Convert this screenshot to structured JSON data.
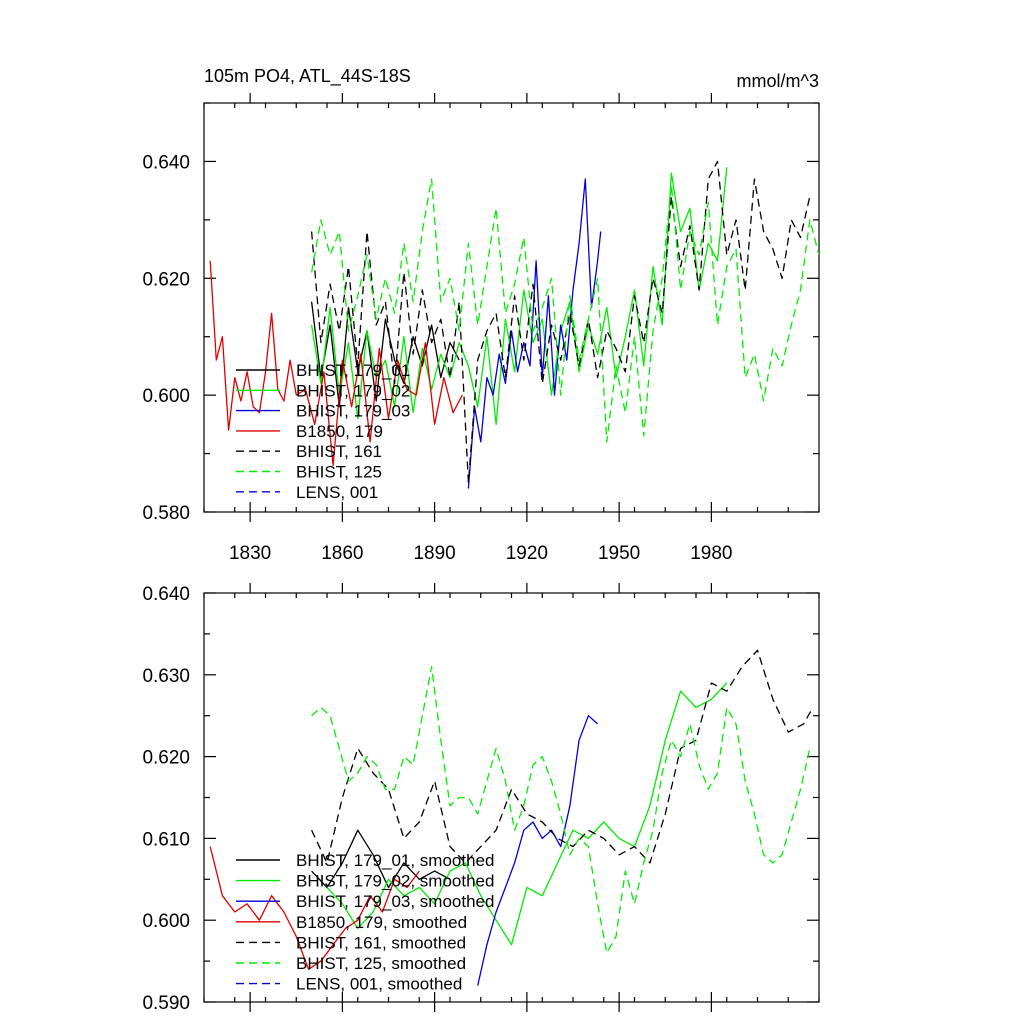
{
  "colors": {
    "black": "#000000",
    "green": "#00ee00",
    "blue": "#0000dd",
    "red": "#e00000"
  },
  "chart_data": [
    {
      "type": "line",
      "title": "105m PO4, ATL_44S-18S",
      "units": "mmol/m^3",
      "xlim": [
        1815,
        2015
      ],
      "ylim": [
        0.58,
        0.65
      ],
      "xticks": [
        1830,
        1860,
        1890,
        1920,
        1950,
        1980
      ],
      "xtick_labels": [
        "1830",
        "1860",
        "1890",
        "1920",
        "1950",
        "1980"
      ],
      "yticks": [
        0.58,
        0.6,
        0.62,
        0.64
      ],
      "ytick_labels": [
        "0.580",
        "0.600",
        "0.620",
        "0.640"
      ],
      "legend_position": "bottom-left",
      "series": [
        {
          "name": "BHIST, 179_01",
          "color": "#000000",
          "dash": "solid",
          "x": [
            1850,
            1853,
            1856,
            1859,
            1862,
            1865,
            1868,
            1871,
            1874,
            1877,
            1880,
            1883,
            1886,
            1889,
            1892,
            1895,
            1898
          ],
          "values": [
            0.616,
            0.603,
            0.612,
            0.598,
            0.615,
            0.604,
            0.611,
            0.599,
            0.613,
            0.606,
            0.602,
            0.61,
            0.605,
            0.612,
            0.603,
            0.609,
            0.606
          ]
        },
        {
          "name": "BHIST, 179_02",
          "color": "#00ee00",
          "dash": "solid",
          "x": [
            1850,
            1853,
            1856,
            1859,
            1862,
            1865,
            1868,
            1871,
            1874,
            1877,
            1880,
            1883,
            1886,
            1889,
            1892,
            1895,
            1898,
            1901,
            1904,
            1907,
            1910,
            1913,
            1916,
            1919,
            1922,
            1925,
            1928,
            1931,
            1934,
            1937,
            1940,
            1943,
            1946,
            1949,
            1952,
            1955,
            1958,
            1961,
            1964,
            1967,
            1970,
            1973,
            1976,
            1979,
            1982,
            1985
          ],
          "values": [
            0.612,
            0.602,
            0.615,
            0.6,
            0.609,
            0.596,
            0.611,
            0.603,
            0.606,
            0.598,
            0.61,
            0.597,
            0.608,
            0.601,
            0.607,
            0.603,
            0.609,
            0.605,
            0.598,
            0.61,
            0.595,
            0.613,
            0.604,
            0.618,
            0.609,
            0.613,
            0.6,
            0.611,
            0.616,
            0.604,
            0.612,
            0.607,
            0.615,
            0.603,
            0.61,
            0.618,
            0.605,
            0.622,
            0.612,
            0.638,
            0.628,
            0.632,
            0.618,
            0.626,
            0.623,
            0.639
          ]
        },
        {
          "name": "BHIST, 179_03",
          "color": "#0000dd",
          "dash": "solid",
          "x": [
            1901,
            1903,
            1905,
            1907,
            1909,
            1911,
            1913,
            1915,
            1917,
            1919,
            1921,
            1923,
            1925,
            1927,
            1929,
            1931,
            1933,
            1935,
            1937,
            1939,
            1941,
            1943,
            1944
          ],
          "values": [
            0.584,
            0.598,
            0.592,
            0.603,
            0.6,
            0.607,
            0.602,
            0.611,
            0.604,
            0.609,
            0.605,
            0.623,
            0.603,
            0.617,
            0.6,
            0.612,
            0.606,
            0.618,
            0.626,
            0.637,
            0.615,
            0.623,
            0.628
          ]
        },
        {
          "name": "B1850, 179",
          "color": "#e00000",
          "dash": "solid",
          "x": [
            1817,
            1819,
            1821,
            1823,
            1825,
            1827,
            1829,
            1831,
            1833,
            1835,
            1837,
            1839,
            1841,
            1843,
            1845,
            1848,
            1851,
            1854,
            1857,
            1860,
            1863,
            1866,
            1869,
            1872,
            1875,
            1878,
            1881,
            1884,
            1887,
            1890,
            1893,
            1896,
            1899
          ],
          "values": [
            0.623,
            0.606,
            0.61,
            0.594,
            0.603,
            0.599,
            0.604,
            0.598,
            0.597,
            0.604,
            0.614,
            0.601,
            0.599,
            0.606,
            0.6,
            0.601,
            0.595,
            0.604,
            0.588,
            0.606,
            0.598,
            0.607,
            0.592,
            0.608,
            0.596,
            0.606,
            0.601,
            0.6,
            0.609,
            0.595,
            0.603,
            0.597,
            0.6
          ]
        },
        {
          "name": "BHIST, 161",
          "color": "#000000",
          "dash": "dashed",
          "x": [
            1850,
            1853,
            1856,
            1859,
            1862,
            1865,
            1868,
            1871,
            1874,
            1877,
            1880,
            1883,
            1886,
            1889,
            1892,
            1895,
            1898,
            1901,
            1904,
            1907,
            1910,
            1913,
            1916,
            1919,
            1922,
            1925,
            1928,
            1931,
            1934,
            1937,
            1940,
            1943,
            1946,
            1949,
            1952,
            1955,
            1958,
            1961,
            1964,
            1967,
            1970,
            1973,
            1976,
            1979,
            1982,
            1985,
            1988,
            1991,
            1994,
            1997,
            2000,
            2003,
            2006,
            2009,
            2012
          ],
          "values": [
            0.628,
            0.609,
            0.619,
            0.611,
            0.622,
            0.605,
            0.628,
            0.612,
            0.616,
            0.602,
            0.621,
            0.607,
            0.618,
            0.609,
            0.613,
            0.603,
            0.616,
            0.585,
            0.606,
            0.611,
            0.614,
            0.603,
            0.617,
            0.606,
            0.619,
            0.602,
            0.612,
            0.606,
            0.614,
            0.605,
            0.613,
            0.603,
            0.611,
            0.608,
            0.604,
            0.617,
            0.609,
            0.62,
            0.614,
            0.634,
            0.622,
            0.629,
            0.618,
            0.637,
            0.64,
            0.624,
            0.63,
            0.618,
            0.637,
            0.628,
            0.625,
            0.62,
            0.63,
            0.627,
            0.634
          ]
        },
        {
          "name": "BHIST, 125",
          "color": "#00ee00",
          "dash": "dashed",
          "x": [
            1850,
            1853,
            1856,
            1859,
            1862,
            1865,
            1868,
            1871,
            1874,
            1877,
            1880,
            1883,
            1886,
            1889,
            1892,
            1895,
            1898,
            1901,
            1904,
            1907,
            1910,
            1913,
            1916,
            1919,
            1922,
            1925,
            1928,
            1931,
            1934,
            1937,
            1940,
            1943,
            1946,
            1949,
            1952,
            1955,
            1958,
            1961,
            1964,
            1967,
            1970,
            1973,
            1976,
            1979,
            1982,
            1985,
            1988,
            1991,
            1994,
            1997,
            2000,
            2003,
            2006,
            2009,
            2012,
            2015
          ],
          "values": [
            0.621,
            0.63,
            0.624,
            0.628,
            0.611,
            0.617,
            0.624,
            0.613,
            0.62,
            0.614,
            0.626,
            0.616,
            0.628,
            0.637,
            0.616,
            0.62,
            0.611,
            0.626,
            0.612,
            0.622,
            0.632,
            0.614,
            0.619,
            0.627,
            0.611,
            0.615,
            0.62,
            0.6,
            0.617,
            0.606,
            0.613,
            0.62,
            0.592,
            0.605,
            0.597,
            0.61,
            0.593,
            0.611,
            0.62,
            0.636,
            0.618,
            0.628,
            0.624,
            0.633,
            0.612,
            0.622,
            0.625,
            0.603,
            0.607,
            0.599,
            0.608,
            0.605,
            0.612,
            0.618,
            0.63,
            0.624
          ]
        },
        {
          "name": "LENS, 001",
          "color": "#0000dd",
          "dash": "dashed",
          "x": [],
          "values": []
        }
      ]
    },
    {
      "type": "line",
      "xlim": [
        1815,
        2015
      ],
      "ylim": [
        0.59,
        0.64
      ],
      "yticks": [
        0.59,
        0.6,
        0.61,
        0.62,
        0.63,
        0.64
      ],
      "ytick_labels": [
        "0.590",
        "0.600",
        "0.610",
        "0.620",
        "0.630",
        "0.640"
      ],
      "xticks": [
        1830,
        1860,
        1890,
        1920,
        1950,
        1980
      ],
      "legend_position": "bottom-left",
      "series": [
        {
          "name": "BHIST, 179_01, smoothed",
          "color": "#000000",
          "dash": "solid",
          "x": [
            1850,
            1855,
            1860,
            1865,
            1870,
            1875,
            1880,
            1885,
            1890,
            1895
          ],
          "values": [
            0.606,
            0.604,
            0.607,
            0.611,
            0.608,
            0.604,
            0.607,
            0.605,
            0.606,
            0.605
          ]
        },
        {
          "name": "BHIST, 179_02, smoothed",
          "color": "#00ee00",
          "dash": "solid",
          "x": [
            1855,
            1860,
            1865,
            1870,
            1875,
            1880,
            1885,
            1890,
            1895,
            1900,
            1905,
            1910,
            1915,
            1920,
            1925,
            1930,
            1935,
            1940,
            1945,
            1950,
            1955,
            1960,
            1965,
            1970,
            1975,
            1980,
            1985
          ],
          "values": [
            0.604,
            0.602,
            0.599,
            0.601,
            0.605,
            0.603,
            0.604,
            0.602,
            0.606,
            0.607,
            0.603,
            0.6,
            0.597,
            0.604,
            0.603,
            0.607,
            0.611,
            0.61,
            0.612,
            0.61,
            0.609,
            0.614,
            0.622,
            0.628,
            0.626,
            0.627,
            0.629
          ]
        },
        {
          "name": "BHIST, 179_03, smoothed",
          "color": "#0000dd",
          "dash": "solid",
          "x": [
            1904,
            1907,
            1910,
            1913,
            1916,
            1919,
            1922,
            1925,
            1928,
            1931,
            1934,
            1937,
            1940,
            1943
          ],
          "values": [
            0.592,
            0.597,
            0.601,
            0.604,
            0.607,
            0.611,
            0.612,
            0.61,
            0.611,
            0.609,
            0.614,
            0.622,
            0.625,
            0.624
          ]
        },
        {
          "name": "B1850, 179, smoothed",
          "color": "#e00000",
          "dash": "solid",
          "x": [
            1817,
            1821,
            1825,
            1829,
            1833,
            1837,
            1841,
            1845,
            1849,
            1853,
            1857,
            1861,
            1865,
            1869,
            1873,
            1877,
            1881,
            1885
          ],
          "values": [
            0.609,
            0.603,
            0.601,
            0.602,
            0.6,
            0.603,
            0.601,
            0.598,
            0.594,
            0.595,
            0.597,
            0.599,
            0.6,
            0.603,
            0.601,
            0.605,
            0.604,
            0.606
          ]
        },
        {
          "name": "BHIST, 161, smoothed",
          "color": "#000000",
          "dash": "dashed",
          "x": [
            1850,
            1855,
            1860,
            1865,
            1870,
            1875,
            1880,
            1885,
            1890,
            1895,
            1900,
            1905,
            1910,
            1915,
            1920,
            1925,
            1930,
            1935,
            1940,
            1945,
            1950,
            1955,
            1960,
            1965,
            1970,
            1975,
            1980,
            1985,
            1990,
            1995,
            2000,
            2005,
            2010,
            2013
          ],
          "values": [
            0.611,
            0.607,
            0.615,
            0.621,
            0.618,
            0.616,
            0.61,
            0.612,
            0.617,
            0.609,
            0.607,
            0.609,
            0.611,
            0.616,
            0.613,
            0.612,
            0.61,
            0.609,
            0.611,
            0.61,
            0.608,
            0.609,
            0.607,
            0.613,
            0.621,
            0.622,
            0.629,
            0.628,
            0.631,
            0.633,
            0.627,
            0.623,
            0.624,
            0.626
          ]
        },
        {
          "name": "BHIST, 125, smoothed",
          "color": "#00ee00",
          "dash": "dashed",
          "x": [
            1850,
            1853,
            1856,
            1859,
            1862,
            1865,
            1868,
            1871,
            1874,
            1877,
            1880,
            1883,
            1886,
            1889,
            1892,
            1895,
            1898,
            1901,
            1904,
            1907,
            1910,
            1913,
            1916,
            1919,
            1922,
            1925,
            1928,
            1931,
            1934,
            1937,
            1940,
            1943,
            1946,
            1949,
            1952,
            1955,
            1958,
            1961,
            1964,
            1967,
            1970,
            1973,
            1976,
            1979,
            1982,
            1985,
            1988,
            1991,
            1994,
            1997,
            2000,
            2003,
            2006,
            2009,
            2012
          ],
          "values": [
            0.625,
            0.626,
            0.625,
            0.621,
            0.617,
            0.618,
            0.62,
            0.619,
            0.616,
            0.616,
            0.62,
            0.619,
            0.625,
            0.631,
            0.622,
            0.614,
            0.615,
            0.615,
            0.613,
            0.617,
            0.621,
            0.617,
            0.611,
            0.614,
            0.619,
            0.62,
            0.617,
            0.613,
            0.608,
            0.61,
            0.609,
            0.602,
            0.596,
            0.598,
            0.606,
            0.602,
            0.607,
            0.611,
            0.618,
            0.622,
            0.62,
            0.624,
            0.619,
            0.616,
            0.618,
            0.626,
            0.624,
            0.617,
            0.613,
            0.608,
            0.607,
            0.608,
            0.612,
            0.616,
            0.621
          ]
        },
        {
          "name": "LENS, 001, smoothed",
          "color": "#0000dd",
          "dash": "dashed",
          "x": [],
          "values": []
        }
      ]
    }
  ]
}
